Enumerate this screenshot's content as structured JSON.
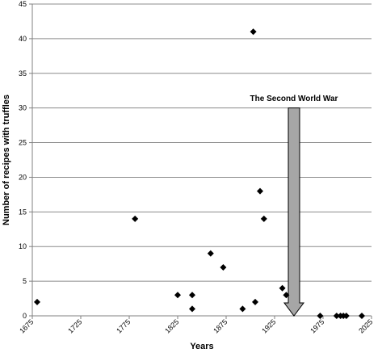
{
  "chart_data": {
    "type": "scatter",
    "title": "",
    "xlabel": "Years",
    "ylabel": "Number of recipes with truffles",
    "xlim": [
      1675,
      2025
    ],
    "ylim": [
      0,
      45
    ],
    "x_ticks": [
      1675,
      1725,
      1775,
      1825,
      1875,
      1925,
      1975,
      2025
    ],
    "y_ticks": [
      0,
      5,
      10,
      15,
      20,
      25,
      30,
      35,
      40,
      45
    ],
    "grid": "horizontal",
    "legend": "none",
    "marker": "diamond",
    "marker_color": "#000000",
    "points": [
      {
        "x": 1680,
        "y": 2
      },
      {
        "x": 1781,
        "y": 14
      },
      {
        "x": 1825,
        "y": 3
      },
      {
        "x": 1840,
        "y": 3
      },
      {
        "x": 1840,
        "y": 1
      },
      {
        "x": 1859,
        "y": 9
      },
      {
        "x": 1872,
        "y": 7
      },
      {
        "x": 1892,
        "y": 1
      },
      {
        "x": 1903,
        "y": 41
      },
      {
        "x": 1905,
        "y": 2
      },
      {
        "x": 1910,
        "y": 18
      },
      {
        "x": 1914,
        "y": 14
      },
      {
        "x": 1933,
        "y": 4
      },
      {
        "x": 1937,
        "y": 3
      },
      {
        "x": 1972,
        "y": 0
      },
      {
        "x": 1989,
        "y": 0
      },
      {
        "x": 1993,
        "y": 0
      },
      {
        "x": 1996,
        "y": 0
      },
      {
        "x": 1999,
        "y": 0
      },
      {
        "x": 2015,
        "y": 0
      }
    ],
    "annotation": {
      "text": "The Second World War",
      "arrow_x": 1945,
      "arrow_y_top": 30,
      "arrow_y_bottom": 0,
      "arrow_fill": "#a6a6a6",
      "arrow_stroke": "#000000",
      "text_x": 1945,
      "text_y": 31.5
    }
  }
}
